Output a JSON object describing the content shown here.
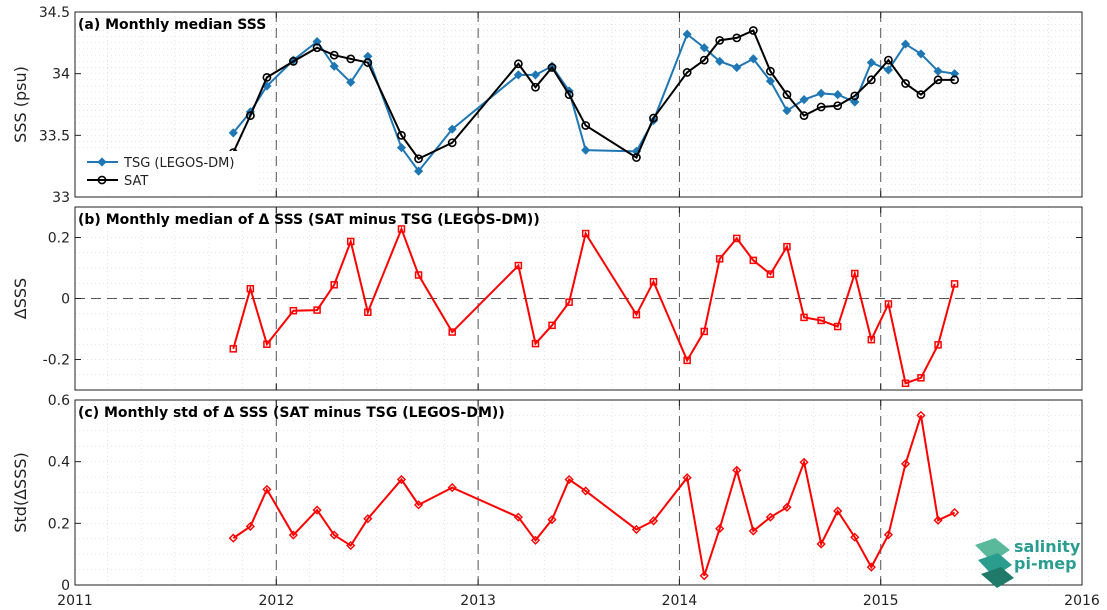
{
  "chart_data": [
    {
      "type": "line",
      "title": "(a) Monthly median SSS",
      "xlabel": "",
      "ylabel": "SSS (psu)",
      "xlim": [
        "2011-01-01",
        "2016-01-01"
      ],
      "ylim": [
        33,
        34.5
      ],
      "yticks": [
        "33",
        "33.5",
        "34",
        "34.5"
      ],
      "grid": true,
      "legend": "left",
      "series": [
        {
          "name": "TSG (LEGOS-DM)",
          "color": "#1f77b4",
          "marker": "diamond",
          "x": [
            "2011-10-15",
            "2011-11-15",
            "2011-12-15",
            "2012-02-01",
            "2012-03-15",
            "2012-04-15",
            "2012-05-15",
            "2012-06-15",
            "2012-08-15",
            "2012-09-15",
            "2012-11-15",
            "2013-03-15",
            "2013-04-15",
            "2013-05-15",
            "2013-06-15",
            "2013-07-15",
            "2013-10-15",
            "2013-11-15",
            "2014-01-15",
            "2014-02-15",
            "2014-03-15",
            "2014-04-15",
            "2014-05-15",
            "2014-06-15",
            "2014-07-15",
            "2014-08-15",
            "2014-09-15",
            "2014-10-15",
            "2014-11-15",
            "2014-12-15",
            "2015-01-15",
            "2015-02-15",
            "2015-03-15",
            "2015-04-15",
            "2015-05-15"
          ],
          "y": [
            33.52,
            33.69,
            33.9,
            34.11,
            34.26,
            34.06,
            33.93,
            34.14,
            33.4,
            33.21,
            33.55,
            33.99,
            33.99,
            34.06,
            33.86,
            33.38,
            33.37,
            33.62,
            34.32,
            34.21,
            34.1,
            34.05,
            34.12,
            33.94,
            33.7,
            33.79,
            33.84,
            33.83,
            33.77,
            34.09,
            34.03,
            34.24,
            34.16,
            34.02,
            34.0
          ]
        },
        {
          "name": "SAT",
          "color": "#000000",
          "marker": "circle",
          "x": [
            "2011-10-15",
            "2011-11-15",
            "2011-12-15",
            "2012-02-01",
            "2012-03-15",
            "2012-04-15",
            "2012-05-15",
            "2012-06-15",
            "2012-08-15",
            "2012-09-15",
            "2012-11-15",
            "2013-03-15",
            "2013-04-15",
            "2013-05-15",
            "2013-06-15",
            "2013-07-15",
            "2013-10-15",
            "2013-11-15",
            "2014-01-15",
            "2014-02-15",
            "2014-03-15",
            "2014-04-15",
            "2014-05-15",
            "2014-06-15",
            "2014-07-15",
            "2014-08-15",
            "2014-09-15",
            "2014-10-15",
            "2014-11-15",
            "2014-12-15",
            "2015-01-15",
            "2015-02-15",
            "2015-03-15",
            "2015-04-15",
            "2015-05-15"
          ],
          "y": [
            33.36,
            33.66,
            33.97,
            34.1,
            34.21,
            34.15,
            34.12,
            34.09,
            33.5,
            33.31,
            33.44,
            34.08,
            33.89,
            34.05,
            33.83,
            33.58,
            33.32,
            33.64,
            34.01,
            34.11,
            34.27,
            34.29,
            34.35,
            34.02,
            33.83,
            33.66,
            33.73,
            33.74,
            33.82,
            33.95,
            34.11,
            33.92,
            33.83,
            33.95,
            33.95
          ]
        }
      ]
    },
    {
      "type": "line",
      "title": "(b) Monthly median of Δ SSS (SAT minus TSG (LEGOS-DM))",
      "xlabel": "",
      "ylabel": "ΔSSS",
      "xlim": [
        "2011-01-01",
        "2016-01-01"
      ],
      "ylim": [
        -0.3,
        0.3
      ],
      "yticks": [
        "-0.2",
        "0",
        "0.2"
      ],
      "grid": true,
      "series": [
        {
          "color": "#ff0000",
          "marker": "square",
          "x": [
            "2011-10-15",
            "2011-11-15",
            "2011-12-15",
            "2012-02-01",
            "2012-03-15",
            "2012-04-15",
            "2012-05-15",
            "2012-06-15",
            "2012-08-15",
            "2012-09-15",
            "2012-11-15",
            "2013-03-15",
            "2013-04-15",
            "2013-05-15",
            "2013-06-15",
            "2013-07-15",
            "2013-10-15",
            "2013-11-15",
            "2014-01-15",
            "2014-02-15",
            "2014-03-15",
            "2014-04-15",
            "2014-05-15",
            "2014-06-15",
            "2014-07-15",
            "2014-08-15",
            "2014-09-15",
            "2014-10-15",
            "2014-11-15",
            "2014-12-15",
            "2015-01-15",
            "2015-02-15",
            "2015-03-15",
            "2015-04-15",
            "2015-05-15"
          ],
          "y": [
            -0.165,
            0.032,
            -0.15,
            -0.04,
            -0.038,
            0.045,
            0.187,
            -0.045,
            0.228,
            0.077,
            -0.11,
            0.108,
            -0.148,
            -0.088,
            -0.012,
            0.213,
            -0.053,
            0.055,
            -0.203,
            -0.108,
            0.13,
            0.197,
            0.125,
            0.08,
            0.17,
            -0.062,
            -0.072,
            -0.092,
            0.082,
            -0.135,
            -0.018,
            -0.278,
            -0.26,
            -0.152,
            0.048
          ]
        }
      ]
    },
    {
      "type": "line",
      "title": "(c) Monthly std of Δ SSS (SAT minus TSG (LEGOS-DM))",
      "xlabel": "",
      "ylabel": "Std(ΔSSS)",
      "xlim": [
        "2011-01-01",
        "2016-01-01"
      ],
      "ylim": [
        0,
        0.6
      ],
      "yticks": [
        "0",
        "0.2",
        "0.4",
        "0.6"
      ],
      "xticks": [
        "2011",
        "2012",
        "2013",
        "2014",
        "2015",
        "2016"
      ],
      "grid": true,
      "series": [
        {
          "color": "#ff0000",
          "marker": "diamond",
          "x": [
            "2011-10-15",
            "2011-11-15",
            "2011-12-15",
            "2012-02-01",
            "2012-03-15",
            "2012-04-15",
            "2012-05-15",
            "2012-06-15",
            "2012-08-15",
            "2012-09-15",
            "2012-11-15",
            "2013-03-15",
            "2013-04-15",
            "2013-05-15",
            "2013-06-15",
            "2013-07-15",
            "2013-10-15",
            "2013-11-15",
            "2014-01-15",
            "2014-02-15",
            "2014-03-15",
            "2014-04-15",
            "2014-05-15",
            "2014-06-15",
            "2014-07-15",
            "2014-08-15",
            "2014-09-15",
            "2014-10-15",
            "2014-11-15",
            "2014-12-15",
            "2015-01-15",
            "2015-02-15",
            "2015-03-15",
            "2015-04-15",
            "2015-05-15"
          ],
          "y": [
            0.152,
            0.19,
            0.31,
            0.162,
            0.243,
            0.162,
            0.128,
            0.215,
            0.342,
            0.26,
            0.316,
            0.22,
            0.145,
            0.212,
            0.342,
            0.305,
            0.18,
            0.208,
            0.348,
            0.03,
            0.183,
            0.372,
            0.175,
            0.22,
            0.252,
            0.398,
            0.133,
            0.24,
            0.155,
            0.058,
            0.163,
            0.393,
            0.55,
            0.21,
            0.235
          ]
        }
      ]
    }
  ],
  "logo": {
    "line1": "salinity",
    "line2": "pi-mep"
  }
}
